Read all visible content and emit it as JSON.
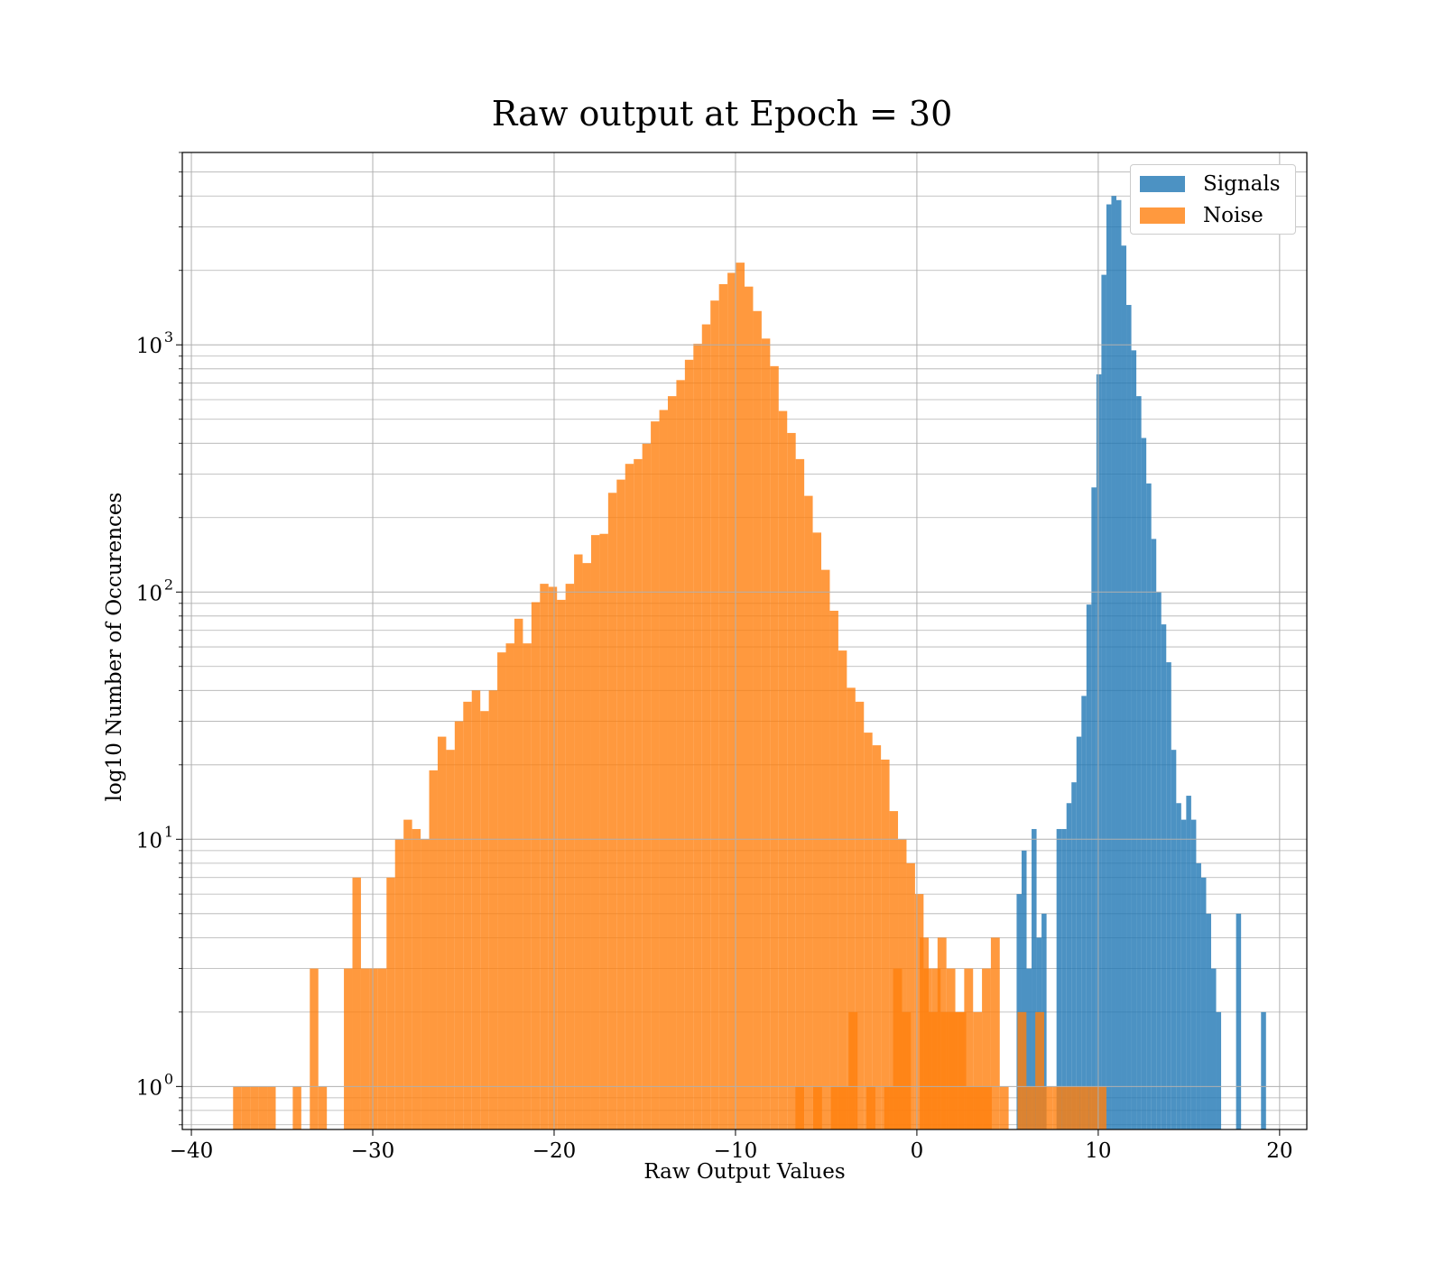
{
  "chart_data": {
    "type": "histogram",
    "title": "Raw output at Epoch = 30",
    "xlabel": "Raw Output Values",
    "ylabel": "log10 Number of Occurences",
    "xlim": [
      -40.5,
      21.5
    ],
    "ylim": [
      0.67,
      6000
    ],
    "yscale": "log",
    "grid": true,
    "legend_position": "top-right",
    "x_ticks": [
      {
        "value": -40,
        "label": "−40"
      },
      {
        "value": -30,
        "label": "−30"
      },
      {
        "value": -20,
        "label": "−20"
      },
      {
        "value": -10,
        "label": "−10"
      },
      {
        "value": 0,
        "label": "0"
      },
      {
        "value": 10,
        "label": "10"
      },
      {
        "value": 20,
        "label": "20"
      }
    ],
    "y_ticks": [
      {
        "value": 1,
        "base": "10",
        "exp": "0"
      },
      {
        "value": 10,
        "base": "10",
        "exp": "1"
      },
      {
        "value": 100,
        "base": "10",
        "exp": "2"
      },
      {
        "value": 1000,
        "base": "10",
        "exp": "3"
      }
    ],
    "series": [
      {
        "name": "Noise",
        "color": "#ff7f0e",
        "alpha": 0.8,
        "bin_start": -37.7,
        "bin_width": 0.47,
        "counts": [
          1,
          1,
          1,
          1,
          1,
          0,
          0,
          1,
          0,
          3,
          1,
          0,
          0,
          3,
          7,
          3,
          3,
          3,
          7,
          10,
          12,
          11,
          10,
          19,
          26,
          23,
          30,
          36,
          40,
          33,
          40,
          57,
          62,
          78,
          62,
          91,
          108,
          105,
          93,
          108,
          142,
          131,
          170,
          172,
          252,
          285,
          330,
          345,
          398,
          490,
          545,
          620,
          720,
          870,
          1010,
          1210,
          1510,
          1760,
          1955,
          2150,
          1720,
          1370,
          1060,
          820,
          540,
          440,
          345,
          245,
          174,
          123,
          84,
          58,
          41,
          36,
          27,
          24,
          21,
          13,
          10,
          8,
          6,
          3,
          3,
          2,
          2,
          2,
          1,
          1,
          1
        ]
      },
      {
        "name": "Signals",
        "color": "#1f77b4",
        "alpha": 0.8,
        "bin_start": 5.5,
        "bin_width": 0.275,
        "counts": [
          6,
          9,
          3,
          11,
          4,
          5,
          0,
          0,
          11,
          11,
          14,
          17,
          26,
          38,
          89,
          265,
          760,
          1920,
          3700,
          4000,
          3850,
          2520,
          1450,
          950,
          620,
          420,
          275,
          164,
          100,
          74,
          52,
          23,
          14,
          12,
          15,
          12,
          8,
          7,
          5,
          3,
          2,
          0,
          0,
          0,
          5,
          0,
          0,
          0,
          0,
          2
        ]
      },
      {
        "name": "Noise",
        "color": "#ff7f0e",
        "alpha": 0.8,
        "bin_start": -6.7,
        "bin_width": 0.49,
        "counts": [
          1,
          0,
          1,
          0,
          1,
          1,
          2,
          0,
          1,
          0,
          1,
          3,
          2,
          0,
          4,
          2,
          4,
          3,
          2,
          3,
          2,
          3,
          4,
          1,
          0,
          2,
          1,
          2,
          1,
          1,
          1,
          1,
          1,
          1,
          1
        ]
      }
    ]
  }
}
